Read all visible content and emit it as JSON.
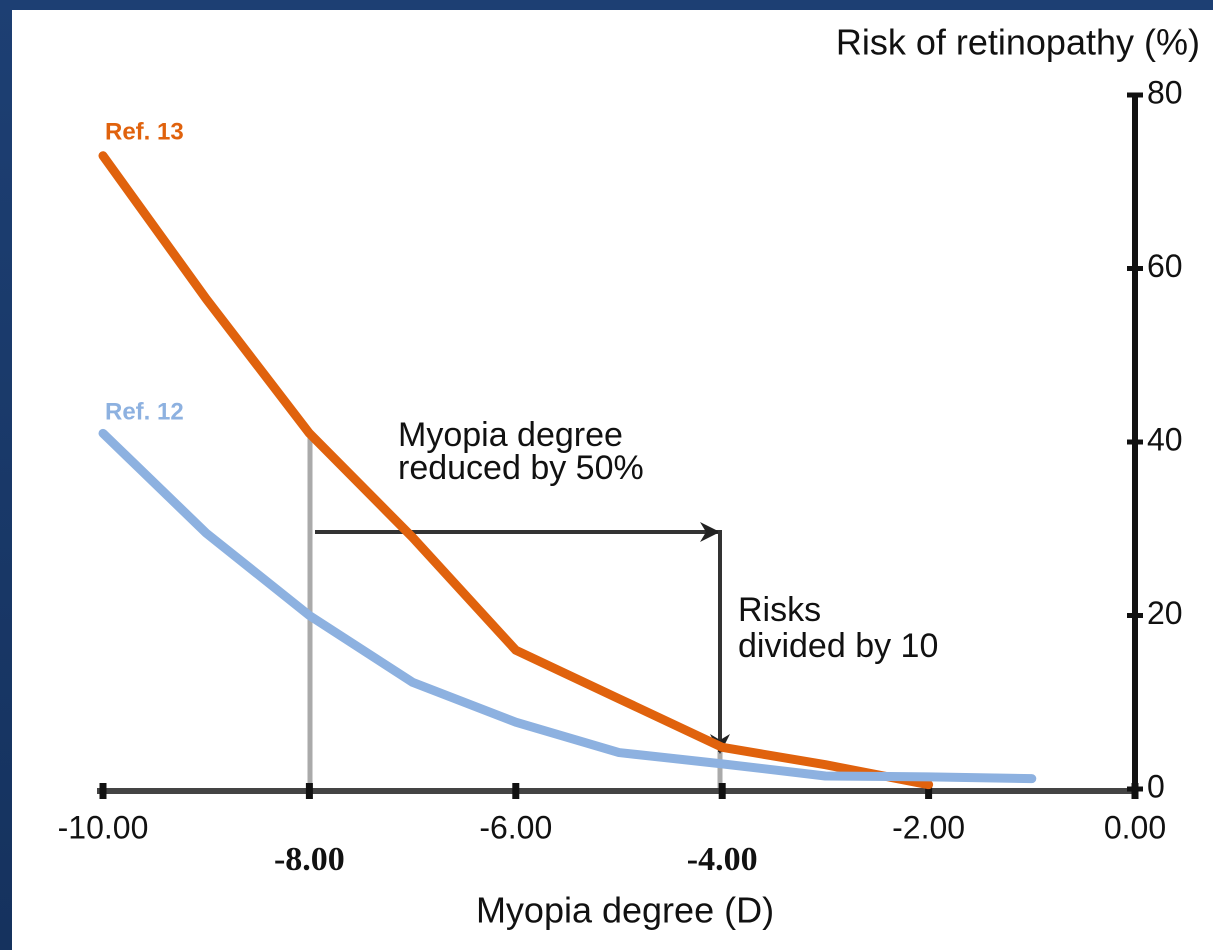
{
  "chart_data": {
    "type": "line",
    "y_title": "Risk of retinopathy (%)",
    "x_title": "Myopia degree (D)",
    "x": [
      -10,
      -9,
      -8,
      -7,
      -6,
      -5,
      -4,
      -3,
      -2,
      -1
    ],
    "series": [
      {
        "name": "Ref. 13",
        "color": "#e0620d",
        "values": [
          73,
          56.5,
          41,
          29,
          16,
          10.4,
          4.8,
          2.8,
          0.5,
          null
        ]
      },
      {
        "name": "Ref. 12",
        "color": "#8db1e0",
        "values": [
          41,
          29.5,
          20,
          12.3,
          7.7,
          4.2,
          2.9,
          1.5,
          1.4,
          1.2
        ]
      }
    ],
    "xlim": [
      -10,
      0
    ],
    "xticks": [
      {
        "value": -10,
        "label": "-10.00"
      },
      {
        "value": -8,
        "label": "-8.00",
        "bold": true
      },
      {
        "value": -6,
        "label": "-6.00"
      },
      {
        "value": -4,
        "label": "-4.00",
        "bold": true
      },
      {
        "value": -2,
        "label": "-2.00"
      },
      {
        "value": 0,
        "label": "0.00"
      }
    ],
    "ylim": [
      0,
      80
    ],
    "yticks": [
      0,
      20,
      40,
      60,
      80
    ],
    "annotations": [
      [
        "Myopia degree",
        "reduced by 50%"
      ],
      [
        "Risks",
        "divided by 10"
      ]
    ]
  }
}
